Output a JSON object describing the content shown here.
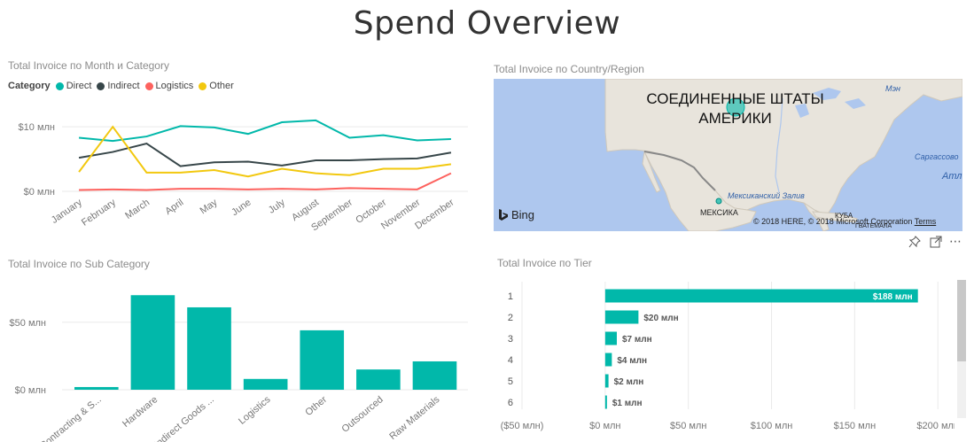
{
  "page": {
    "title": "Spend Overview"
  },
  "line_chart": {
    "title": "Total Invoice по Month и Category",
    "legend_title": "Category",
    "y_ticks": [
      "$10 млн",
      "$0 млн"
    ]
  },
  "map": {
    "title": "Total Invoice по Country/Region",
    "label_usa": "СОЕДИНЕННЫЕ ШТАТЫ АМЕРИКИ",
    "label_mexico": "МЕКСИКА",
    "label_cuba": "КУБА",
    "label_gulf": "Мексиканский Залив",
    "label_sargasso": "Саргассово",
    "label_atl": "Атл",
    "label_maine": "Мэн",
    "label_guatemala": "ГВАТЕМАЛА",
    "bing": "Bing",
    "copyright": "© 2018 HERE, © 2018 Microsoft Corporation",
    "terms": "Terms",
    "water_color": "#aec7ee",
    "land_color": "#e8e4dc",
    "bubble_color": "#01b8aa"
  },
  "bar_chart": {
    "title": "Total Invoice по Sub Category",
    "y_ticks": [
      "$50 млн",
      "$0 млн"
    ]
  },
  "tier_chart": {
    "title": "Total Invoice по Tier",
    "x_ticks": [
      "($50 млн)",
      "$0 млн",
      "$50 млн",
      "$100 млн",
      "$150 млн",
      "$200 млн"
    ],
    "value_labels": [
      "$188 млн",
      "$20 млн",
      "$7 млн",
      "$4 млн",
      "$2 млн",
      "$1 млн"
    ]
  },
  "toolbar": {
    "pin": "pin-icon",
    "focus": "focus-mode-icon",
    "more": "more-options-icon"
  },
  "colors": {
    "teal": "#01b8aa",
    "dark": "#374649",
    "red": "#fd625e",
    "yellow": "#f2c80f"
  },
  "chart_data": [
    {
      "type": "line",
      "title": "Total Invoice по Month и Category",
      "categories": [
        "January",
        "February",
        "March",
        "April",
        "May",
        "June",
        "July",
        "August",
        "September",
        "October",
        "November",
        "December"
      ],
      "series": [
        {
          "name": "Direct",
          "color": "#01b8aa",
          "values": [
            8.3,
            7.8,
            8.5,
            10.1,
            9.9,
            8.9,
            10.7,
            11.0,
            8.3,
            8.7,
            7.9,
            8.1
          ]
        },
        {
          "name": "Indirect",
          "color": "#374649",
          "values": [
            5.2,
            6.1,
            7.4,
            3.9,
            4.5,
            4.6,
            4.0,
            4.8,
            4.8,
            5.0,
            5.1,
            6.0
          ]
        },
        {
          "name": "Logistics",
          "color": "#fd625e",
          "values": [
            0.2,
            0.3,
            0.2,
            0.4,
            0.4,
            0.3,
            0.4,
            0.3,
            0.5,
            0.4,
            0.3,
            2.8
          ]
        },
        {
          "name": "Other",
          "color": "#f2c80f",
          "values": [
            3.0,
            10.0,
            2.9,
            2.9,
            3.3,
            2.3,
            3.5,
            2.8,
            2.5,
            3.5,
            3.5,
            4.2
          ]
        }
      ],
      "ylim": [
        0,
        14
      ],
      "y_tick_values": [
        0,
        10
      ],
      "xlabel": "",
      "ylabel": "",
      "legend": "top-left"
    },
    {
      "type": "bar",
      "title": "Total Invoice по Sub Category",
      "categories": [
        "Contracting & S...",
        "Hardware",
        "Indirect Goods ...",
        "Logistics",
        "Other",
        "Outsourced",
        "Raw Materials"
      ],
      "values": [
        2,
        70,
        61,
        8,
        44,
        15,
        21
      ],
      "ylim": [
        0,
        80
      ],
      "y_tick_values": [
        0,
        50
      ],
      "color": "#01b8aa"
    },
    {
      "type": "bar",
      "orientation": "horizontal",
      "title": "Total Invoice по Tier",
      "categories": [
        "1",
        "2",
        "3",
        "4",
        "5",
        "6"
      ],
      "values": [
        188,
        20,
        7,
        4,
        2,
        1
      ],
      "xlim": [
        -50,
        210
      ],
      "x_tick_values": [
        -50,
        0,
        50,
        100,
        150,
        200
      ],
      "color": "#01b8aa"
    }
  ]
}
